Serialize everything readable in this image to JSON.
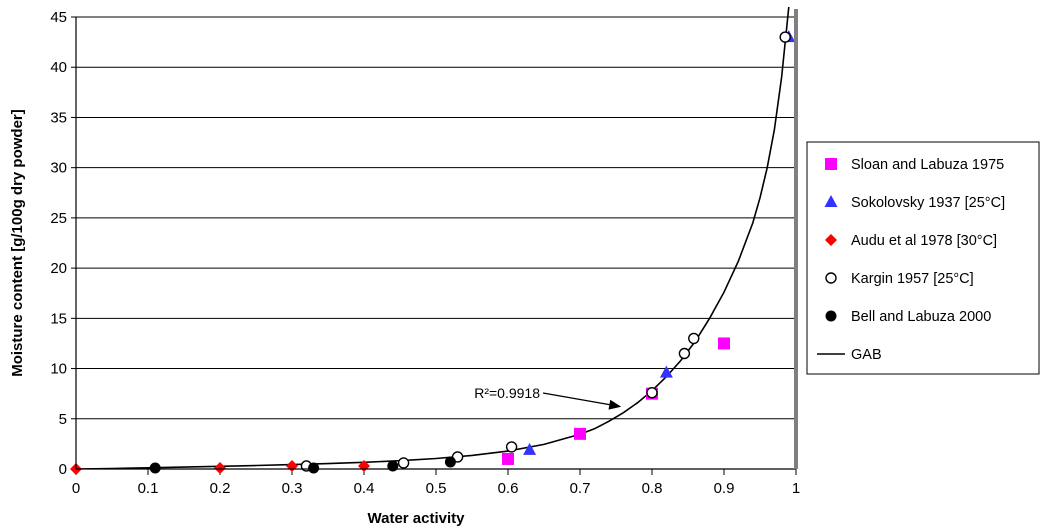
{
  "chart_data": {
    "type": "scatter",
    "xlabel": "Water activity",
    "ylabel": "Moisture content [g/100g dry powder]",
    "xlim": [
      0,
      1
    ],
    "ylim": [
      0,
      45
    ],
    "xticks": [
      "0",
      "0.1",
      "0.2",
      "0.3",
      "0.4",
      "0.5",
      "0.6",
      "0.7",
      "0.8",
      "0.9",
      "1"
    ],
    "yticks": [
      "0",
      "5",
      "10",
      "15",
      "20",
      "25",
      "30",
      "35",
      "40",
      "45"
    ],
    "grid": "horizontal",
    "legend_position": "right",
    "annotation": {
      "text": "R²=0.9918",
      "x": 0.76,
      "y": 6.2
    },
    "series": [
      {
        "name": "Sloan and Labuza 1975",
        "marker": "square",
        "color": "#ff00ff",
        "points": [
          [
            0.6,
            1.0
          ],
          [
            0.7,
            3.5
          ],
          [
            0.8,
            7.5
          ],
          [
            0.9,
            12.5
          ]
        ]
      },
      {
        "name": "Sokolovsky 1937 [25°C]",
        "marker": "triangle",
        "color": "#3333ff",
        "points": [
          [
            0.63,
            1.9
          ],
          [
            0.82,
            9.6
          ],
          [
            0.99,
            43.0
          ]
        ]
      },
      {
        "name": "Audu et al 1978 [30°C]",
        "marker": "diamond",
        "color": "#ff0000",
        "points": [
          [
            0.0,
            0.0
          ],
          [
            0.2,
            0.1
          ],
          [
            0.3,
            0.3
          ],
          [
            0.4,
            0.3
          ]
        ]
      },
      {
        "name": "Kargin 1957 [25°C]",
        "marker": "open-circle",
        "color": "#000000",
        "points": [
          [
            0.32,
            0.3
          ],
          [
            0.455,
            0.6
          ],
          [
            0.53,
            1.2
          ],
          [
            0.605,
            2.2
          ],
          [
            0.8,
            7.6
          ],
          [
            0.845,
            11.5
          ],
          [
            0.858,
            13.0
          ],
          [
            0.985,
            43.0
          ]
        ]
      },
      {
        "name": "Bell and Labuza 2000",
        "marker": "filled-circle",
        "color": "#000000",
        "points": [
          [
            0.11,
            0.1
          ],
          [
            0.33,
            0.1
          ],
          [
            0.44,
            0.3
          ],
          [
            0.52,
            0.7
          ]
        ]
      },
      {
        "name": "GAB",
        "marker": "line",
        "color": "#000000",
        "points": [
          [
            0.0,
            0.0
          ],
          [
            0.05,
            0.05
          ],
          [
            0.1,
            0.12
          ],
          [
            0.15,
            0.19
          ],
          [
            0.2,
            0.27
          ],
          [
            0.25,
            0.35
          ],
          [
            0.3,
            0.44
          ],
          [
            0.35,
            0.54
          ],
          [
            0.4,
            0.67
          ],
          [
            0.45,
            0.83
          ],
          [
            0.5,
            1.05
          ],
          [
            0.55,
            1.35
          ],
          [
            0.6,
            1.78
          ],
          [
            0.65,
            2.45
          ],
          [
            0.7,
            3.45
          ],
          [
            0.72,
            4.0
          ],
          [
            0.74,
            4.75
          ],
          [
            0.76,
            5.6
          ],
          [
            0.78,
            6.6
          ],
          [
            0.8,
            7.8
          ],
          [
            0.82,
            9.2
          ],
          [
            0.84,
            10.8
          ],
          [
            0.86,
            12.7
          ],
          [
            0.88,
            15.0
          ],
          [
            0.9,
            17.6
          ],
          [
            0.92,
            20.7
          ],
          [
            0.94,
            24.5
          ],
          [
            0.95,
            27.0
          ],
          [
            0.96,
            30.0
          ],
          [
            0.97,
            33.8
          ],
          [
            0.98,
            39.0
          ],
          [
            0.99,
            46.0
          ]
        ]
      }
    ]
  }
}
